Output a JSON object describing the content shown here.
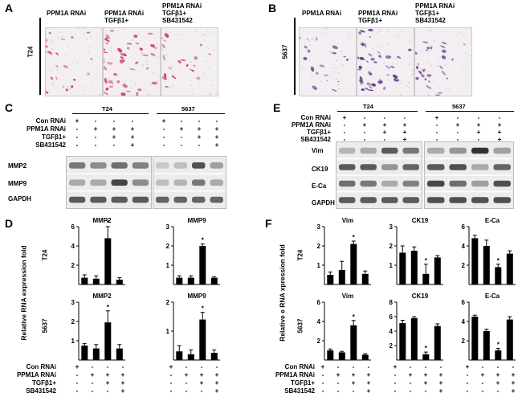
{
  "panels": {
    "A": {
      "letter": "A",
      "cell_line": "T24",
      "columns": [
        [
          "PPM1A  RNAi"
        ],
        [
          "PPM1A RNAi",
          "TGFβ1+"
        ],
        [
          "PPM1A RNAi",
          "TGFβ1+",
          "SB431542"
        ]
      ]
    },
    "B": {
      "letter": "B",
      "cell_line": "5637",
      "columns": [
        [
          "PPM1A  RNAi"
        ],
        [
          "PPM1A RNAi",
          "TGFβ1+"
        ],
        [
          "PPM1A RNAi",
          "TGFβ1+",
          "SB431542"
        ]
      ]
    },
    "C": {
      "letter": "C",
      "groups": [
        "T24",
        "5637"
      ],
      "row_labels": [
        "Con RNAi",
        "PPM1A RNAi",
        "TGFβ1+",
        "SB431542"
      ],
      "signs": [
        [
          "+",
          "-",
          "-",
          "-"
        ],
        [
          "-",
          "+",
          "+",
          "+"
        ],
        [
          "-",
          "-",
          "+",
          "+"
        ],
        [
          "-",
          "-",
          "-",
          "+"
        ]
      ],
      "bands": [
        "MMP2",
        "MMP9",
        "GAPDH"
      ]
    },
    "E": {
      "letter": "E",
      "groups": [
        "T24",
        "5637"
      ],
      "row_labels": [
        "Con RNAi",
        "PPM1A RNAi",
        "TGFβ1+",
        "SB431542"
      ],
      "signs": [
        [
          "+",
          "-",
          "-",
          "-"
        ],
        [
          "-",
          "+",
          "+",
          "+"
        ],
        [
          "-",
          "-",
          "+",
          "+"
        ],
        [
          "-",
          "-",
          "-",
          "+"
        ]
      ],
      "bands": [
        "Vim",
        "CK19",
        "E-Ca",
        "GAPDH"
      ]
    },
    "D": {
      "letter": "D",
      "ylabel": "Relative RNA expression fold",
      "row_labels": [
        "T24",
        "5637"
      ],
      "x_rows": [
        "Con RNAi",
        "PPM1A RNAi",
        "TGFβ1+",
        "SB431542"
      ],
      "x_signs": [
        [
          "+",
          "-",
          "-",
          "-"
        ],
        [
          "-",
          "+",
          "+",
          "+"
        ],
        [
          "-",
          "-",
          "+",
          "+"
        ],
        [
          "-",
          "-",
          "-",
          "+"
        ]
      ]
    },
    "F": {
      "letter": "F",
      "ylabel": "Relative e RNA xpression fold",
      "row_labels": [
        "T24",
        "5637"
      ],
      "x_rows": [
        "Con RNAi",
        "PPM1A RNAi",
        "TGFβ1+",
        "SB431542"
      ],
      "x_signs": [
        [
          "+",
          "-",
          "-",
          "-"
        ],
        [
          "-",
          "+",
          "+",
          "+"
        ],
        [
          "-",
          "-",
          "+",
          "+"
        ],
        [
          "-",
          "-",
          "-",
          "+"
        ]
      ]
    }
  },
  "chart_data": [
    {
      "type": "bar",
      "panel": "D",
      "row": "T24",
      "title": "MMP2",
      "categories": [
        "Con RNAi",
        "PPM1A RNAi",
        "PPM1A RNAi+TGFβ1",
        "PPM1A RNAi+TGFβ1+SB431542"
      ],
      "values": [
        0.7,
        0.6,
        4.8,
        0.5
      ],
      "errors": [
        0.3,
        0.3,
        1.2,
        0.2
      ],
      "ylim": [
        0,
        6
      ],
      "yticks": [
        2,
        4,
        6
      ],
      "sig": [
        false,
        false,
        true,
        false
      ]
    },
    {
      "type": "bar",
      "panel": "D",
      "row": "T24",
      "title": "MMP9",
      "categories": [
        "Con RNAi",
        "PPM1A RNAi",
        "PPM1A RNAi+TGFβ1",
        "PPM1A RNAi+TGFβ1+SB431542"
      ],
      "values": [
        0.35,
        0.35,
        2.0,
        0.35
      ],
      "errors": [
        0.1,
        0.1,
        0.1,
        0.05
      ],
      "ylim": [
        0,
        3
      ],
      "yticks": [
        1,
        2,
        3
      ],
      "sig": [
        false,
        false,
        true,
        false
      ]
    },
    {
      "type": "bar",
      "panel": "D",
      "row": "5637",
      "title": "MMP2",
      "categories": [
        "Con RNAi",
        "PPM1A RNAi",
        "PPM1A RNAi+TGFβ1",
        "PPM1A RNAi+TGFβ1+SB431542"
      ],
      "values": [
        0.75,
        0.6,
        1.95,
        0.6
      ],
      "errors": [
        0.1,
        0.2,
        0.6,
        0.2
      ],
      "ylim": [
        0,
        3
      ],
      "yticks": [
        1,
        2,
        3
      ],
      "sig": [
        false,
        false,
        true,
        false
      ]
    },
    {
      "type": "bar",
      "panel": "D",
      "row": "5637",
      "title": "MMP9",
      "categories": [
        "Con RNAi",
        "PPM1A RNAi",
        "PPM1A RNAi+TGFβ1",
        "PPM1A RNAi+TGFβ1+SB431542"
      ],
      "values": [
        0.3,
        0.2,
        1.4,
        0.25
      ],
      "errors": [
        0.2,
        0.15,
        0.25,
        0.1
      ],
      "ylim": [
        0,
        2
      ],
      "yticks": [
        1,
        2
      ],
      "sig": [
        false,
        false,
        true,
        false
      ]
    },
    {
      "type": "bar",
      "panel": "F",
      "row": "T24",
      "title": "Vim",
      "categories": [
        "Con RNAi",
        "PPM1A RNAi",
        "PPM1A RNAi+TGFβ1",
        "PPM1A RNAi+TGFβ1+SB431542"
      ],
      "values": [
        0.5,
        0.75,
        2.1,
        0.55
      ],
      "errors": [
        0.15,
        0.45,
        0.15,
        0.15
      ],
      "ylim": [
        0,
        3
      ],
      "yticks": [
        1,
        2,
        3
      ],
      "sig": [
        false,
        false,
        true,
        false
      ]
    },
    {
      "type": "bar",
      "panel": "F",
      "row": "T24",
      "title": "CK19",
      "categories": [
        "Con RNAi",
        "PPM1A RNAi",
        "PPM1A RNAi+TGFβ1",
        "PPM1A RNAi+TGFβ1+SB431542"
      ],
      "values": [
        1.65,
        1.75,
        0.55,
        1.4
      ],
      "errors": [
        0.35,
        0.2,
        0.5,
        0.1
      ],
      "ylim": [
        0,
        3
      ],
      "yticks": [
        1,
        2,
        3
      ],
      "sig": [
        false,
        false,
        true,
        false
      ]
    },
    {
      "type": "bar",
      "panel": "F",
      "row": "T24",
      "title": "E-Ca",
      "categories": [
        "Con RNAi",
        "PPM1A RNAi",
        "PPM1A RNAi+TGFβ1",
        "PPM1A RNAi+TGFβ1+SB431542"
      ],
      "values": [
        4.8,
        4.0,
        1.8,
        3.2
      ],
      "errors": [
        0.3,
        0.6,
        0.3,
        0.3
      ],
      "ylim": [
        0,
        6
      ],
      "yticks": [
        2,
        4,
        6
      ],
      "sig": [
        false,
        false,
        true,
        false
      ]
    },
    {
      "type": "bar",
      "panel": "F",
      "row": "5637",
      "title": "Vim",
      "categories": [
        "Con RNAi",
        "PPM1A RNAi",
        "PPM1A RNAi+TGFβ1",
        "PPM1A RNAi+TGFβ1+SB431542"
      ],
      "values": [
        1.0,
        0.8,
        3.6,
        0.55
      ],
      "errors": [
        0.15,
        0.1,
        0.5,
        0.1
      ],
      "ylim": [
        0,
        6
      ],
      "yticks": [
        2,
        4,
        6
      ],
      "sig": [
        false,
        false,
        true,
        false
      ]
    },
    {
      "type": "bar",
      "panel": "F",
      "row": "5637",
      "title": "CK19",
      "categories": [
        "Con RNAi",
        "PPM1A RNAi",
        "PPM1A RNAi+TGFβ1",
        "PPM1A RNAi+TGFβ1+SB431542"
      ],
      "values": [
        5.1,
        5.8,
        0.8,
        4.7
      ],
      "errors": [
        0.4,
        0.2,
        0.3,
        0.3
      ],
      "ylim": [
        0,
        8
      ],
      "yticks": [
        2,
        4,
        6,
        8
      ],
      "sig": [
        false,
        false,
        true,
        false
      ]
    },
    {
      "type": "bar",
      "panel": "F",
      "row": "5637",
      "title": "E-Ca",
      "categories": [
        "Con RNAi",
        "PPM1A RNAi",
        "PPM1A RNAi+TGFβ1",
        "PPM1A RNAi+TGFβ1+SB431542"
      ],
      "values": [
        4.5,
        3.0,
        1.0,
        4.2
      ],
      "errors": [
        0.15,
        0.2,
        0.2,
        0.3
      ],
      "ylim": [
        0,
        6
      ],
      "yticks": [
        2,
        4,
        6
      ],
      "sig": [
        false,
        false,
        true,
        false
      ]
    }
  ]
}
